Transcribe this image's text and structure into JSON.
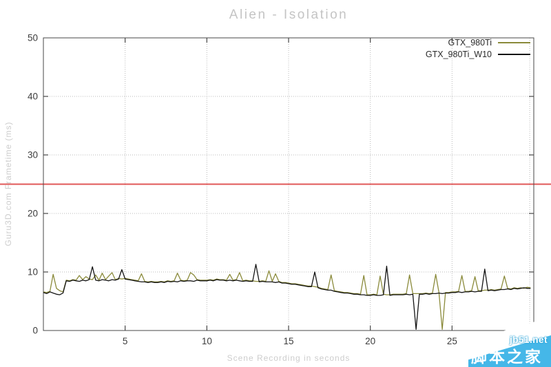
{
  "colors": {
    "background": "#ffffff",
    "border": "#474747",
    "grid": "#b8b8b8",
    "red_line": "#e05757",
    "title_text": "#c4c4c4",
    "axis_label_text": "#cdcdcd",
    "tick_text": "#3c3c3c",
    "legend_text": "#2a2a2a",
    "watermark_blue": "#45b7e8",
    "watermark_text": "#ffffff"
  },
  "watermark": {
    "line1": "jb51.net",
    "line2": "脚本之家"
  },
  "chart_data": {
    "type": "line",
    "title": "Alien - Isolation",
    "xlabel": "Scene Recording in seconds",
    "ylabel": "Guru3D.com Frametime (ms)",
    "xlim": [
      0,
      30
    ],
    "ylim": [
      0,
      50
    ],
    "xticks": [
      5,
      10,
      15,
      20,
      25
    ],
    "yticks": [
      0,
      10,
      20,
      30,
      40,
      50
    ],
    "grid": "dotted",
    "legend_position": "top-right-inside",
    "hline": {
      "y": 25,
      "color": "#e05757"
    },
    "x_start": 0,
    "x_step": 0.2,
    "series": [
      {
        "name": "GTX_980Ti",
        "color": "#8a8a3a",
        "values": [
          6.6,
          6.5,
          6.7,
          9.6,
          7.2,
          6.8,
          6.6,
          8.6,
          8.5,
          8.7,
          8.6,
          9.4,
          8.7,
          9.2,
          8.8,
          8.7,
          9.5,
          8.6,
          9.8,
          8.7,
          9.3,
          9.9,
          8.7,
          8.9,
          8.8,
          8.9,
          8.8,
          8.7,
          8.6,
          8.5,
          9.7,
          8.4,
          8.3,
          8.4,
          8.3,
          8.3,
          8.4,
          8.3,
          8.5,
          8.4,
          8.5,
          9.8,
          8.6,
          8.5,
          8.6,
          9.9,
          9.5,
          8.7,
          8.6,
          8.6,
          8.6,
          8.7,
          8.6,
          8.8,
          8.7,
          8.7,
          8.6,
          9.6,
          8.6,
          8.7,
          9.9,
          8.5,
          8.6,
          8.5,
          8.5,
          8.4,
          8.4,
          8.5,
          8.4,
          10.2,
          8.4,
          9.7,
          8.4,
          8.2,
          8.2,
          8.1,
          8.0,
          8.0,
          7.9,
          7.8,
          7.7,
          7.6,
          7.6,
          7.5,
          7.4,
          7.2,
          7.1,
          7.0,
          9.5,
          6.8,
          6.7,
          6.6,
          6.5,
          6.5,
          6.4,
          6.3,
          6.3,
          6.2,
          9.4,
          6.1,
          6.1,
          6.2,
          6.1,
          9.3,
          6.2,
          6.1,
          6.1,
          6.2,
          6.2,
          6.2,
          6.2,
          6.3,
          9.5,
          6.3,
          6.3,
          6.3,
          6.3,
          6.4,
          6.3,
          6.4,
          9.6,
          6.5,
          0.2,
          6.5,
          6.5,
          6.6,
          6.6,
          6.7,
          9.4,
          6.7,
          6.7,
          6.8,
          9.2,
          6.8,
          6.8,
          6.9,
          6.9,
          7.0,
          6.9,
          7.0,
          7.1,
          9.3,
          7.2,
          7.1,
          7.3,
          7.2,
          7.3,
          7.2,
          7.4,
          7.3
        ]
      },
      {
        "name": "GTX_980Ti_W10",
        "color": "#141414",
        "values": [
          6.5,
          6.3,
          6.6,
          6.4,
          6.2,
          6.1,
          6.4,
          8.5,
          8.4,
          8.6,
          8.5,
          8.4,
          8.6,
          8.5,
          8.7,
          10.9,
          8.6,
          8.5,
          8.7,
          8.6,
          8.5,
          8.7,
          8.6,
          8.8,
          10.4,
          8.8,
          8.7,
          8.6,
          8.5,
          8.4,
          8.3,
          8.3,
          8.2,
          8.3,
          8.2,
          8.2,
          8.3,
          8.2,
          8.4,
          8.3,
          8.4,
          8.3,
          8.5,
          8.4,
          8.5,
          8.5,
          8.4,
          8.6,
          8.5,
          8.5,
          8.5,
          8.6,
          8.5,
          8.7,
          8.6,
          8.6,
          8.5,
          8.6,
          8.5,
          8.6,
          8.5,
          8.4,
          8.5,
          8.4,
          8.4,
          11.3,
          8.3,
          8.4,
          8.3,
          8.3,
          8.3,
          8.2,
          8.3,
          8.1,
          8.1,
          8.0,
          7.9,
          7.9,
          7.8,
          7.7,
          7.6,
          7.5,
          7.5,
          10.0,
          7.3,
          7.1,
          7.0,
          6.9,
          6.9,
          6.7,
          6.6,
          6.5,
          6.4,
          6.4,
          6.3,
          6.2,
          6.2,
          6.1,
          6.1,
          6.0,
          6.0,
          6.1,
          6.0,
          6.0,
          6.1,
          11.0,
          6.0,
          6.1,
          6.1,
          6.1,
          6.1,
          6.2,
          6.1,
          6.2,
          0.2,
          6.2,
          6.2,
          6.3,
          6.2,
          6.3,
          6.3,
          6.4,
          6.3,
          6.4,
          6.4,
          6.5,
          6.5,
          6.6,
          6.5,
          6.6,
          6.6,
          6.7,
          6.6,
          6.7,
          6.7,
          10.5,
          6.8,
          6.9,
          6.8,
          6.9,
          7.0,
          7.0,
          7.1,
          7.0,
          7.2,
          7.1,
          7.2,
          7.3,
          7.2,
          7.2
        ]
      }
    ]
  }
}
